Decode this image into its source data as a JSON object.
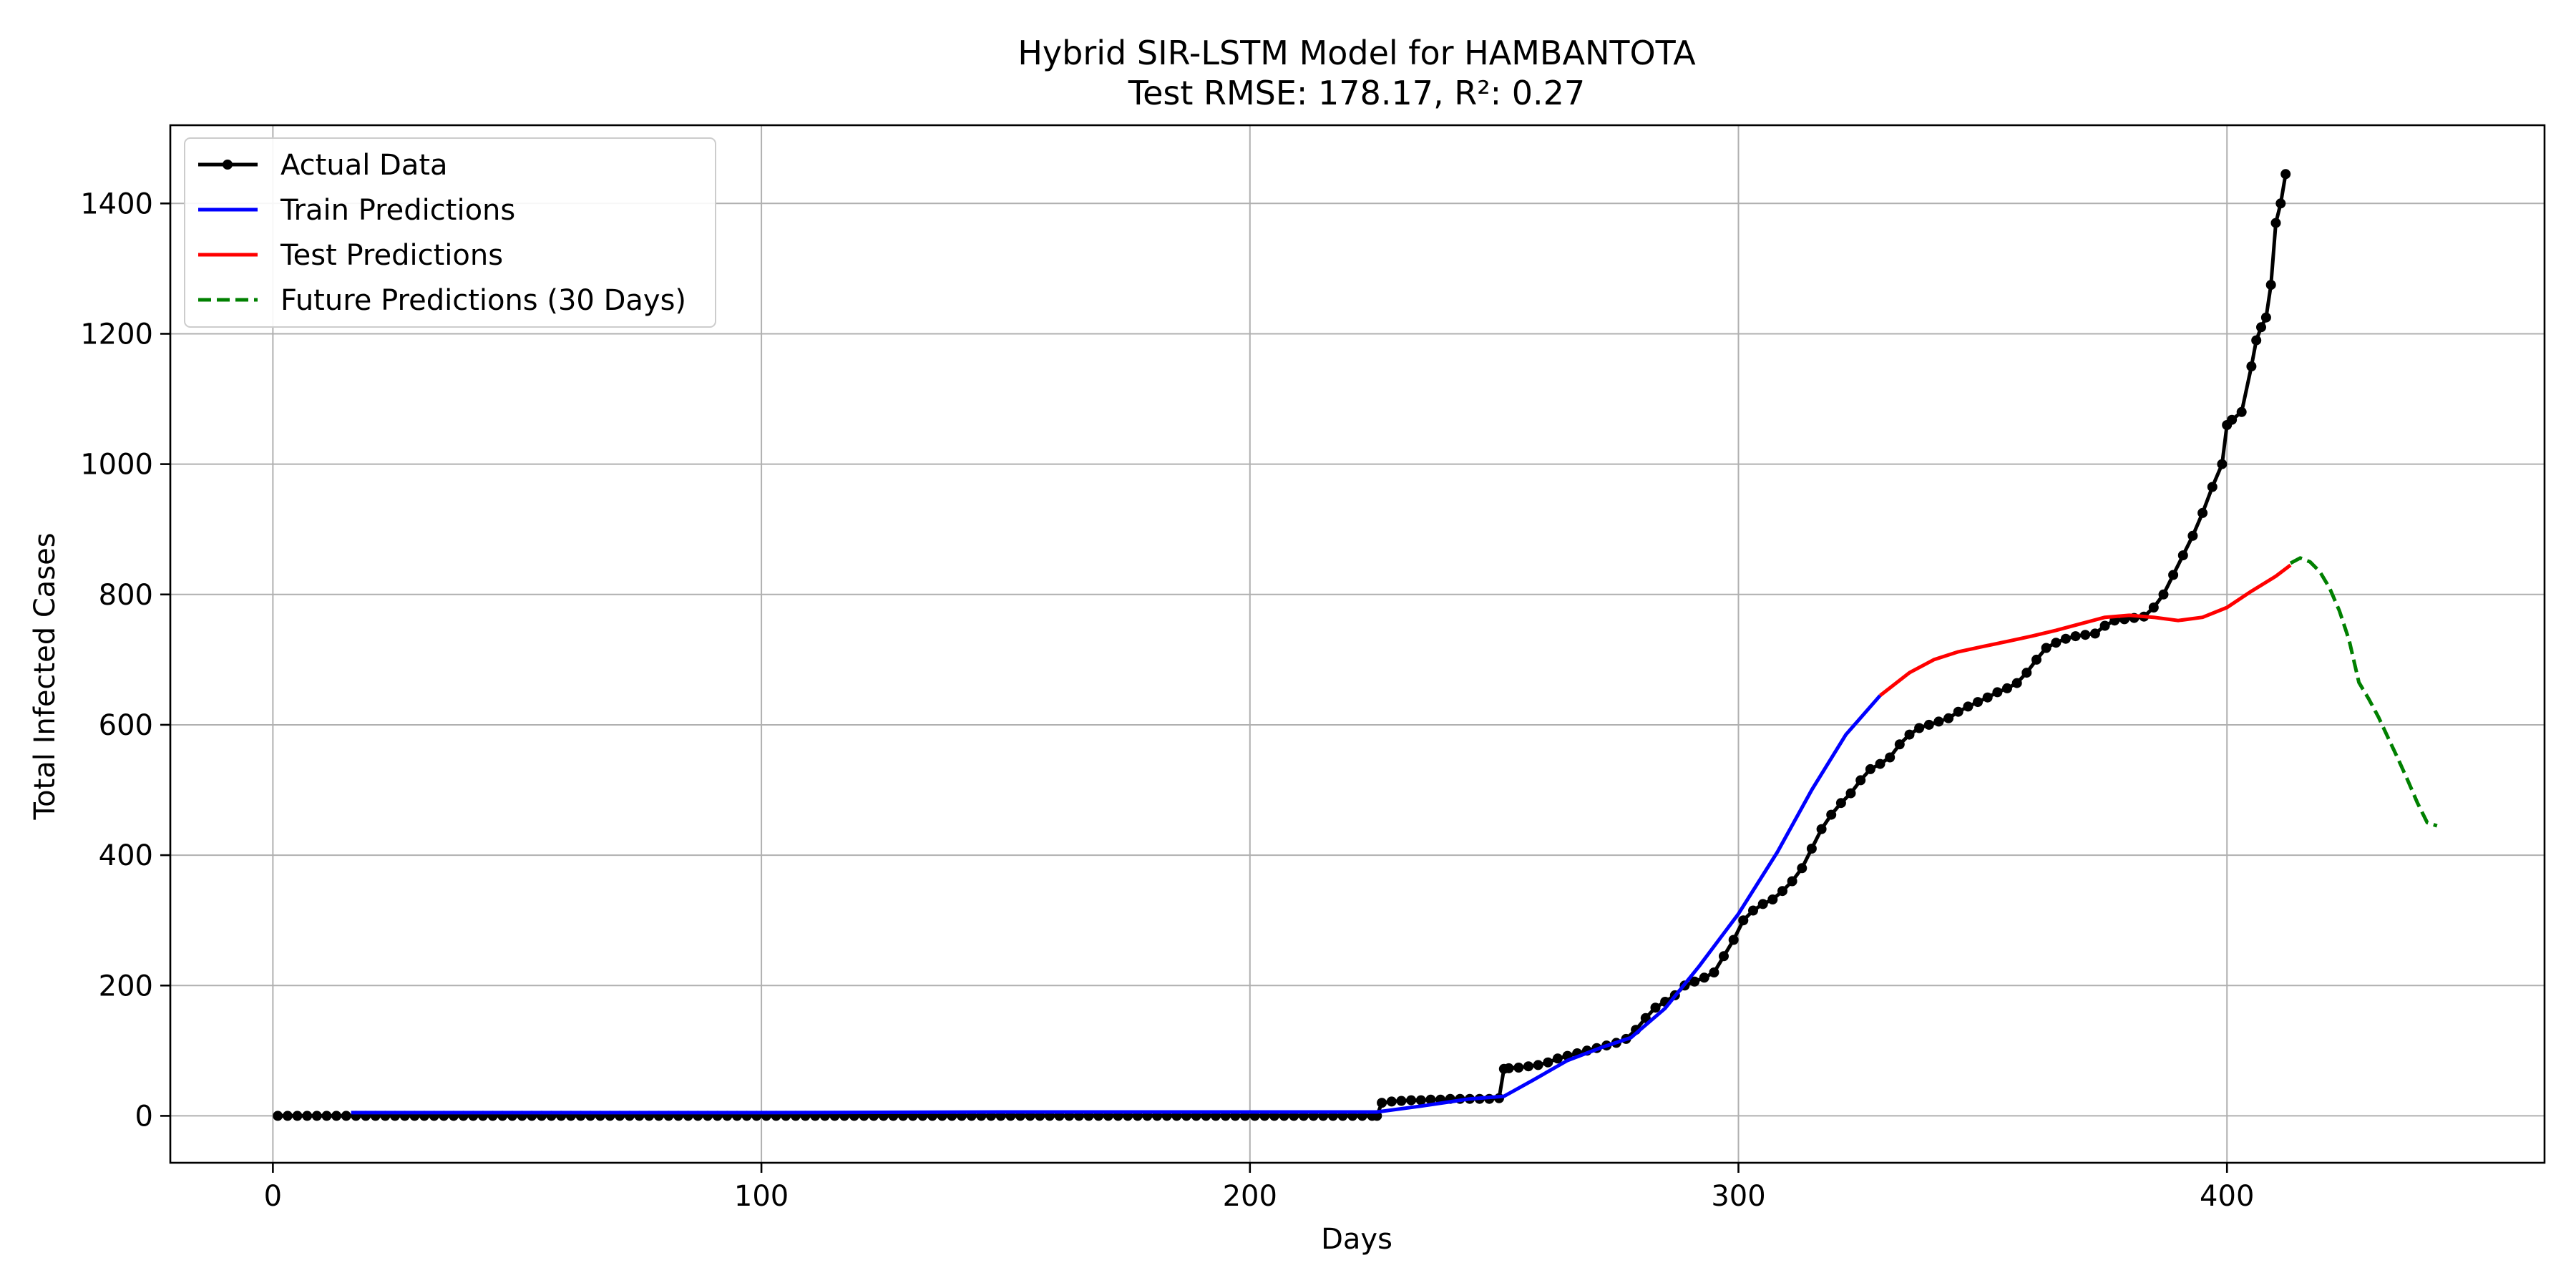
{
  "chart_data": {
    "type": "line",
    "title": "Hybrid SIR-LSTM Model for HAMBANTOTA",
    "subtitle": "Test RMSE: 178.17, R²: 0.27",
    "xlabel": "Days",
    "ylabel": "Total Infected Cases",
    "xlim": [
      -21,
      465
    ],
    "ylim": [
      -72,
      1520
    ],
    "xticks": [
      0,
      100,
      200,
      300,
      400
    ],
    "yticks": [
      0,
      200,
      400,
      600,
      800,
      1000,
      1200,
      1400
    ],
    "grid": true,
    "legend_position": "top-left",
    "series": [
      {
        "name": "Actual Data",
        "color": "#000000",
        "style": "solid-with-markers",
        "x": [
          1,
          3,
          5,
          7,
          9,
          11,
          13,
          15,
          17,
          19,
          21,
          23,
          25,
          27,
          29,
          31,
          33,
          35,
          37,
          39,
          41,
          43,
          45,
          47,
          49,
          51,
          53,
          55,
          57,
          59,
          61,
          63,
          65,
          67,
          69,
          71,
          73,
          75,
          77,
          79,
          81,
          83,
          85,
          87,
          89,
          91,
          93,
          95,
          97,
          99,
          101,
          103,
          105,
          107,
          109,
          111,
          113,
          115,
          117,
          119,
          121,
          123,
          125,
          127,
          129,
          131,
          133,
          135,
          137,
          139,
          141,
          143,
          145,
          147,
          149,
          151,
          153,
          155,
          157,
          159,
          161,
          163,
          165,
          167,
          169,
          171,
          173,
          175,
          177,
          179,
          181,
          183,
          185,
          187,
          189,
          191,
          193,
          195,
          197,
          199,
          201,
          203,
          205,
          207,
          209,
          211,
          213,
          215,
          217,
          219,
          221,
          223,
          225,
          226,
          227,
          229,
          231,
          233,
          235,
          237,
          239,
          241,
          243,
          245,
          247,
          249,
          251,
          252,
          253,
          255,
          257,
          259,
          261,
          263,
          265,
          267,
          269,
          271,
          273,
          275,
          277,
          279,
          281,
          283,
          285,
          287,
          289,
          291,
          293,
          295,
          297,
          299,
          301,
          303,
          305,
          307,
          309,
          311,
          313,
          315,
          317,
          319,
          321,
          323,
          325,
          327,
          329,
          331,
          333,
          335,
          337,
          339,
          341,
          343,
          345,
          347,
          349,
          351,
          353,
          355,
          357,
          359,
          361,
          363,
          365,
          367,
          369,
          371,
          373,
          375,
          377,
          379,
          381,
          383,
          385,
          387,
          389,
          391,
          393,
          395,
          397,
          399,
          400,
          401,
          403,
          405,
          406,
          407,
          408,
          409,
          410,
          411,
          412
        ],
        "y": [
          0,
          0,
          0,
          0,
          0,
          0,
          0,
          0,
          0,
          0,
          0,
          0,
          0,
          0,
          0,
          0,
          0,
          0,
          0,
          0,
          0,
          0,
          0,
          0,
          0,
          0,
          0,
          0,
          0,
          0,
          0,
          0,
          0,
          0,
          0,
          0,
          0,
          0,
          0,
          0,
          0,
          0,
          0,
          0,
          0,
          0,
          0,
          0,
          0,
          0,
          0,
          0,
          0,
          0,
          0,
          0,
          0,
          0,
          0,
          0,
          0,
          0,
          0,
          0,
          0,
          0,
          0,
          0,
          0,
          0,
          0,
          0,
          0,
          0,
          0,
          0,
          0,
          0,
          0,
          0,
          0,
          0,
          0,
          0,
          0,
          0,
          0,
          0,
          0,
          0,
          0,
          0,
          0,
          0,
          0,
          0,
          0,
          0,
          0,
          0,
          0,
          0,
          0,
          0,
          0,
          0,
          0,
          0,
          0,
          0,
          0,
          0,
          0,
          0,
          20,
          22,
          23,
          24,
          24,
          25,
          25,
          26,
          26,
          26,
          26,
          26,
          27,
          72,
          73,
          74,
          76,
          78,
          82,
          88,
          92,
          96,
          100,
          104,
          108,
          112,
          118,
          132,
          150,
          166,
          175,
          185,
          200,
          206,
          212,
          220,
          245,
          270,
          300,
          315,
          325,
          332,
          345,
          360,
          380,
          410,
          440,
          462,
          480,
          495,
          515,
          532,
          540,
          550,
          570,
          585,
          595,
          600,
          605,
          610,
          620,
          628,
          635,
          642,
          650,
          656,
          664,
          680,
          700,
          718,
          726,
          732,
          736,
          738,
          740,
          752,
          760,
          762,
          764,
          766,
          780,
          800,
          830,
          860,
          890,
          925,
          965,
          1000,
          1060,
          1068,
          1080,
          1150,
          1190,
          1210,
          1225,
          1275,
          1370,
          1400,
          1445
        ]
      },
      {
        "name": "Train Predictions",
        "color": "#0000ff",
        "style": "solid",
        "x": [
          16,
          50,
          100,
          150,
          200,
          226,
          235,
          245,
          252,
          258,
          265,
          272,
          278,
          285,
          292,
          300,
          308,
          315,
          322,
          329
        ],
        "y": [
          5,
          5,
          5,
          6,
          6,
          6,
          15,
          26,
          30,
          55,
          85,
          105,
          120,
          165,
          230,
          310,
          405,
          500,
          585,
          645
        ]
      },
      {
        "name": "Test Predictions",
        "color": "#ff0000",
        "style": "solid",
        "x": [
          329,
          335,
          340,
          345,
          350,
          355,
          360,
          365,
          370,
          375,
          380,
          385,
          390,
          395,
          400,
          405,
          410,
          413
        ],
        "y": [
          645,
          680,
          700,
          712,
          720,
          728,
          736,
          745,
          755,
          765,
          768,
          765,
          760,
          765,
          780,
          805,
          828,
          845
        ]
      },
      {
        "name": "Future Predictions (30 Days)",
        "color": "#008000",
        "style": "dashed",
        "x": [
          413,
          415,
          417,
          419,
          421,
          423,
          425,
          427,
          429,
          431,
          433,
          435,
          437,
          439,
          441,
          443
        ],
        "y": [
          848,
          856,
          850,
          835,
          810,
          775,
          730,
          665,
          640,
          612,
          580,
          548,
          515,
          480,
          450,
          445
        ]
      }
    ]
  }
}
